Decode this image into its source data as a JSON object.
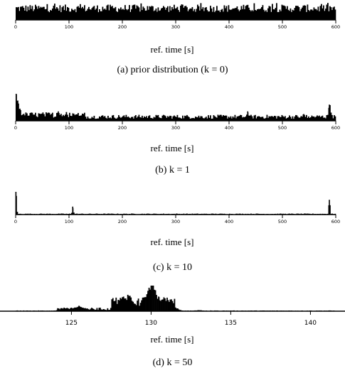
{
  "chart_data": [
    {
      "type": "bar",
      "caption": "(a) prior distribution (k = 0)",
      "xlabel": "ref. time [s]",
      "xlim": [
        0,
        600
      ],
      "xticks": [
        0,
        100,
        200,
        300,
        400,
        500,
        600
      ],
      "xticklabels": [
        "0",
        "100",
        "200",
        "300",
        "400",
        "500",
        "600"
      ],
      "values_desc": "uniform-like random histogram",
      "series": [
        {
          "x": [
            0,
            20,
            40,
            60,
            80,
            100,
            120,
            140,
            160,
            180,
            200,
            220,
            240,
            260,
            280,
            300,
            320,
            340,
            360,
            380,
            400,
            420,
            440,
            460,
            480,
            500,
            520,
            540,
            560,
            580,
            590
          ],
          "y": [
            0.8,
            0.75,
            0.85,
            0.8,
            0.9,
            0.78,
            0.82,
            0.88,
            0.76,
            0.84,
            0.8,
            0.86,
            0.79,
            0.83,
            0.88,
            0.77,
            0.85,
            0.81,
            0.9,
            0.79,
            0.84,
            0.8,
            0.87,
            0.78,
            0.86,
            0.82,
            0.88,
            0.8,
            1.0,
            0.85,
            0.8
          ]
        }
      ]
    },
    {
      "type": "bar",
      "caption": "(b) k = 1",
      "xlabel": "ref. time [s]",
      "xlim": [
        0,
        600
      ],
      "xticks": [
        0,
        100,
        200,
        300,
        400,
        500,
        600
      ],
      "xticklabels": [
        "0",
        "100",
        "200",
        "300",
        "400",
        "500",
        "600"
      ],
      "peaks": [
        {
          "x": 1,
          "y": 1.0
        },
        {
          "x": 4,
          "y": 0.75
        },
        {
          "x": 8,
          "y": 0.45
        },
        {
          "x": 80,
          "y": 0.35
        },
        {
          "x": 95,
          "y": 0.3
        },
        {
          "x": 435,
          "y": 0.35
        },
        {
          "x": 540,
          "y": 0.25
        },
        {
          "x": 588,
          "y": 0.6
        }
      ],
      "baseline": 0.15
    },
    {
      "type": "bar",
      "caption": "(c) k = 10",
      "xlabel": "ref. time [s]",
      "xlim": [
        0,
        600
      ],
      "xticks": [
        0,
        100,
        200,
        300,
        400,
        500,
        600
      ],
      "xticklabels": [
        "0",
        "100",
        "200",
        "300",
        "400",
        "500",
        "600"
      ],
      "peaks": [
        {
          "x": 0.5,
          "y": 1.0
        },
        {
          "x": 107,
          "y": 0.35
        },
        {
          "x": 588,
          "y": 0.65
        }
      ],
      "baseline": 0.03
    },
    {
      "type": "bar",
      "caption": "(d) k = 50",
      "xlabel": "ref. time [s]",
      "xlim": [
        121.5,
        141.5
      ],
      "xticks": [
        125,
        130,
        135,
        140
      ],
      "xticklabels": [
        "125",
        "130",
        "135",
        "140"
      ],
      "peaks": [
        {
          "x": 124.7,
          "y": 0.12
        },
        {
          "x": 125.5,
          "y": 0.2
        },
        {
          "x": 128.2,
          "y": 0.55
        },
        {
          "x": 128.6,
          "y": 0.6
        },
        {
          "x": 129.8,
          "y": 0.7
        },
        {
          "x": 130.0,
          "y": 1.0
        },
        {
          "x": 130.5,
          "y": 0.55
        },
        {
          "x": 131.2,
          "y": 0.25
        },
        {
          "x": 133,
          "y": 0.04
        }
      ],
      "baseline": 0.02
    }
  ]
}
